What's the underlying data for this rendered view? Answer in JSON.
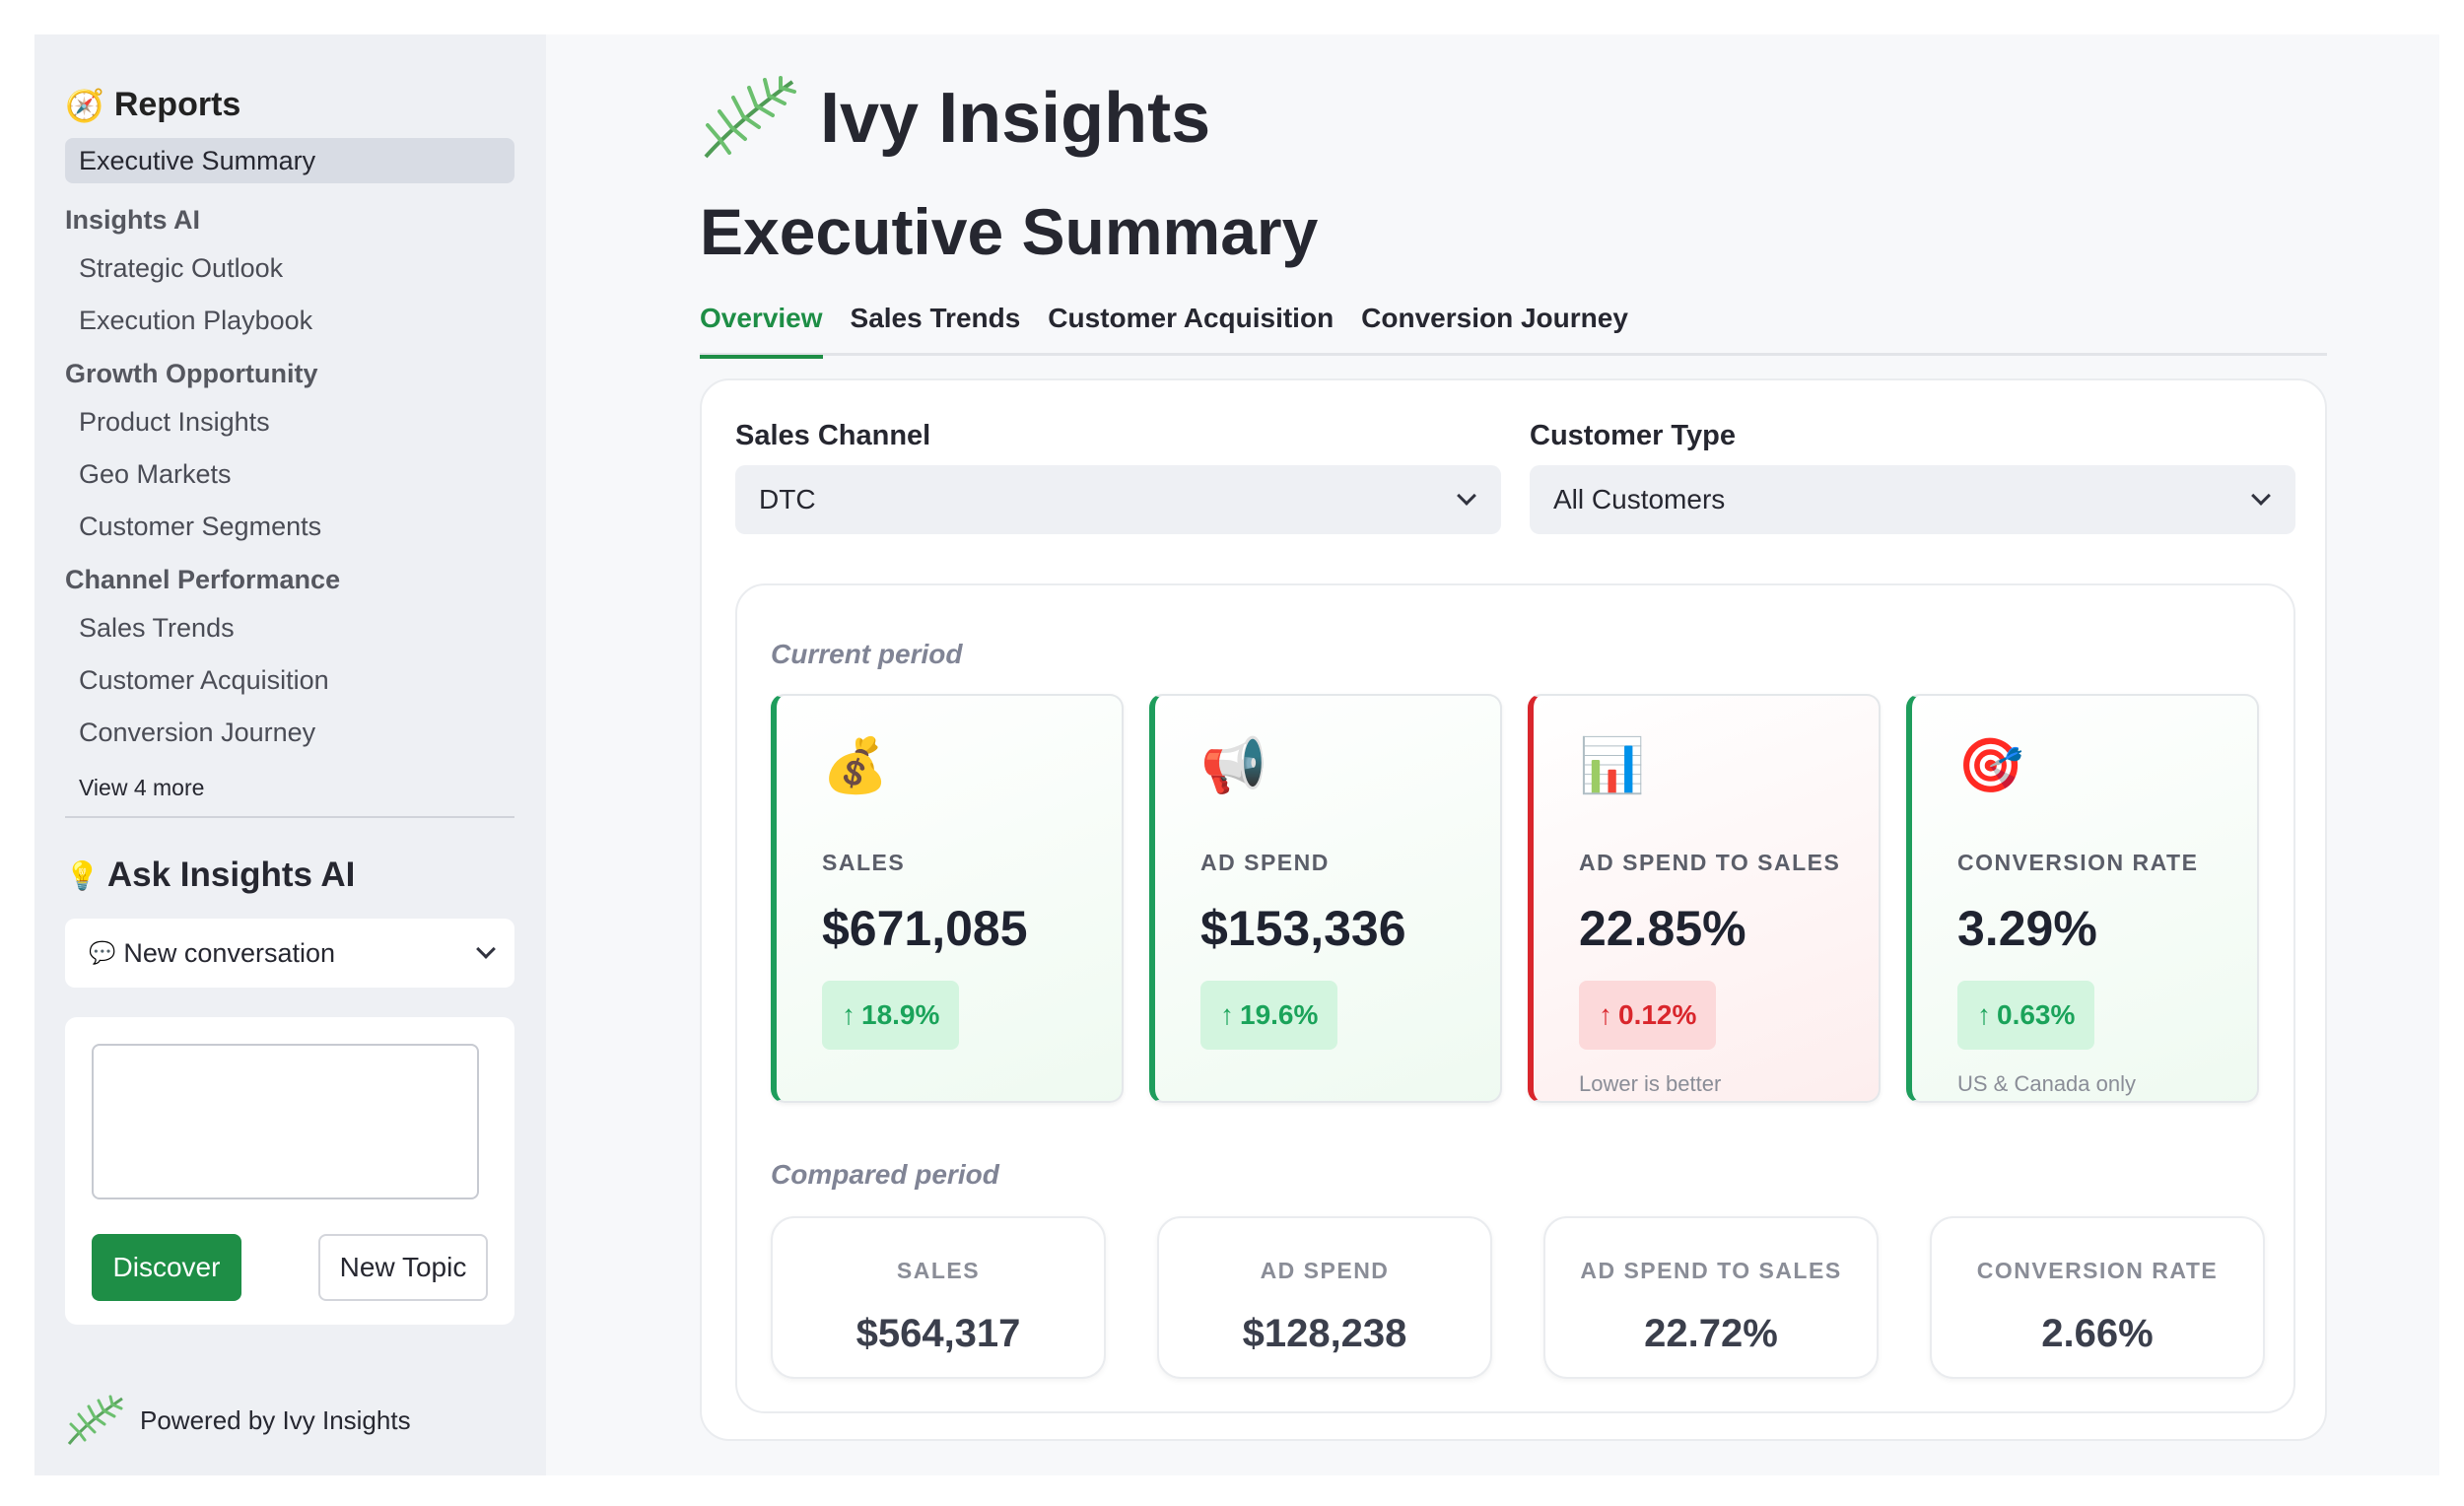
{
  "sidebar": {
    "reports_title": "Reports",
    "reports_icon": "compass-icon",
    "active_item": "Executive Summary",
    "groups": [
      {
        "title": "Insights AI",
        "items": [
          "Strategic Outlook",
          "Execution Playbook"
        ]
      },
      {
        "title": "Growth Opportunity",
        "items": [
          "Product Insights",
          "Geo Markets",
          "Customer Segments"
        ]
      },
      {
        "title": "Channel Performance",
        "items": [
          "Sales Trends",
          "Customer Acquisition",
          "Conversion Journey"
        ]
      }
    ],
    "view_more": "View 4 more",
    "ask_title": "Ask Insights AI",
    "ask_icon": "lightbulb-icon",
    "conversation_select": "New conversation",
    "chat_placeholder": "",
    "discover_label": "Discover",
    "new_topic_label": "New Topic",
    "powered_by": "Powered by Ivy Insights"
  },
  "header": {
    "brand_name": "Ivy Insights",
    "page_title": "Executive Summary",
    "tabs": [
      "Overview",
      "Sales Trends",
      "Customer Acquisition",
      "Conversion Journey"
    ],
    "active_tab": "Overview"
  },
  "filters": {
    "sales_channel_label": "Sales Channel",
    "sales_channel_value": "DTC",
    "customer_type_label": "Customer Type",
    "customer_type_value": "All Customers"
  },
  "current": {
    "label": "Current period",
    "kpis": [
      {
        "icon": "money-bag-icon",
        "emoji": "💰",
        "label": "SALES",
        "value": "$671,085",
        "delta": "18.9%",
        "direction": "up",
        "status": "good",
        "note": ""
      },
      {
        "icon": "megaphone-icon",
        "emoji": "📢",
        "label": "AD SPEND",
        "value": "$153,336",
        "delta": "19.6%",
        "direction": "up",
        "status": "good",
        "note": ""
      },
      {
        "icon": "bar-chart-icon",
        "emoji": "📊",
        "label": "AD SPEND TO SALES",
        "value": "22.85%",
        "delta": "0.12%",
        "direction": "up",
        "status": "bad",
        "note": "Lower is better"
      },
      {
        "icon": "target-icon",
        "emoji": "🎯",
        "label": "CONVERSION RATE",
        "value": "3.29%",
        "delta": "0.63%",
        "direction": "up",
        "status": "good",
        "note": "US & Canada only"
      }
    ]
  },
  "compared": {
    "label": "Compared period",
    "kpis": [
      {
        "label": "SALES",
        "value": "$564,317"
      },
      {
        "label": "AD SPEND",
        "value": "$128,238"
      },
      {
        "label": "AD SPEND TO SALES",
        "value": "22.72%"
      },
      {
        "label": "CONVERSION RATE",
        "value": "2.66%"
      }
    ]
  },
  "colors": {
    "accent_green": "#1e8e46",
    "good_green": "#1aa35a",
    "bad_red": "#d9262c"
  }
}
